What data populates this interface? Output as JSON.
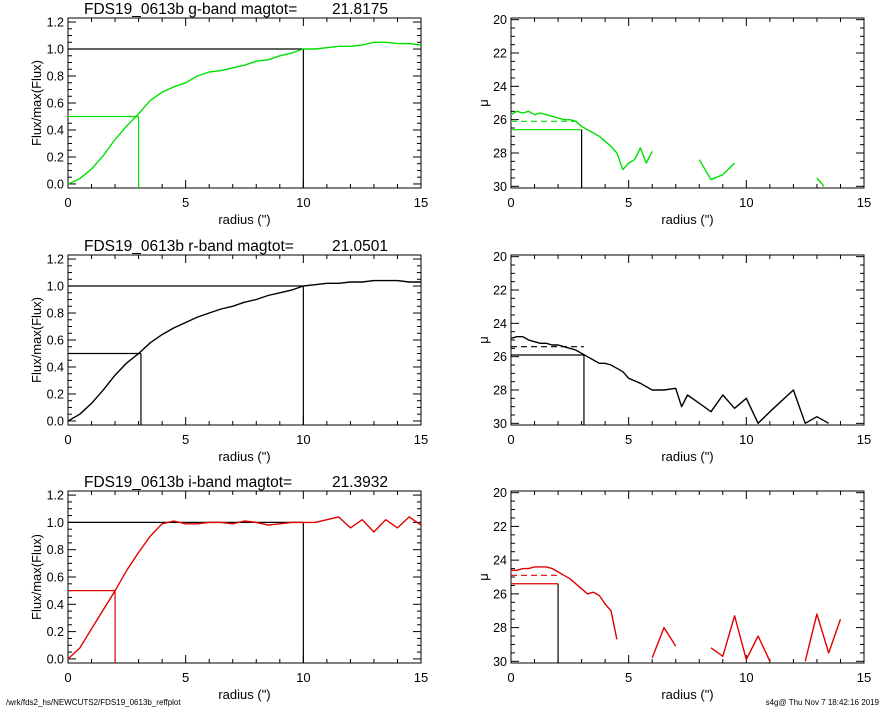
{
  "footer": {
    "path": "/wrk/fds2_hs/NEWCUTS2/FDS19_0613b_reffplot",
    "stamp": "s4g@  Thu Nov  7 18:42:16 2019"
  },
  "chart_data": [
    {
      "type": "line",
      "band": "g",
      "title_left": "FDS19_0613b g-band  magtot=",
      "title_right": "21.8175",
      "xlabel": "radius (\")",
      "ylabel": "Flux/max(Flux)",
      "xlim": [
        0,
        15
      ],
      "ylim": [
        -0.03,
        1.23
      ],
      "xticks": [
        0,
        5,
        10,
        15
      ],
      "yticks": [
        0.0,
        0.2,
        0.4,
        0.6,
        0.8,
        1.0,
        1.2
      ],
      "color": "#00e000",
      "r_half": 3.0,
      "r_tot": 10.0,
      "x": [
        0,
        0.5,
        1,
        1.5,
        2,
        2.5,
        3,
        3.5,
        4,
        4.5,
        5,
        5.5,
        6,
        6.5,
        7,
        7.5,
        8,
        8.5,
        9,
        9.5,
        10,
        10.5,
        11,
        11.5,
        12,
        12.5,
        13,
        13.5,
        14,
        14.5,
        15
      ],
      "y": [
        0.0,
        0.04,
        0.11,
        0.21,
        0.33,
        0.43,
        0.52,
        0.62,
        0.68,
        0.72,
        0.75,
        0.8,
        0.83,
        0.84,
        0.86,
        0.88,
        0.91,
        0.92,
        0.95,
        0.97,
        1.0,
        1.0,
        1.01,
        1.02,
        1.02,
        1.03,
        1.05,
        1.05,
        1.04,
        1.04,
        1.03
      ]
    },
    {
      "type": "line",
      "band": "g",
      "title_left": "",
      "title_right": "",
      "xlabel": "radius (\")",
      "ylabel": "μ",
      "xlim": [
        0,
        15
      ],
      "ylim": [
        30.1,
        19.9
      ],
      "xticks": [
        0,
        5,
        10,
        15
      ],
      "yticks": [
        20,
        22,
        24,
        26,
        28,
        30
      ],
      "color": "#00e000",
      "r_half": 3.0,
      "mu_half": 26.6,
      "mu_mean": 26.1,
      "x": [
        0,
        0.25,
        0.5,
        0.75,
        1,
        1.25,
        1.5,
        1.75,
        2,
        2.25,
        2.5,
        2.75,
        3,
        3.25,
        3.5,
        3.75,
        4,
        4.25,
        4.5,
        4.75,
        5,
        5.25,
        5.5,
        5.75,
        6,
        6.5,
        7,
        7.5,
        8,
        8.5,
        9,
        9.5,
        10,
        11,
        12,
        13,
        13.3
      ],
      "y": [
        25.7,
        25.5,
        25.6,
        25.5,
        25.7,
        25.6,
        25.7,
        25.8,
        25.9,
        26.0,
        26.0,
        26.1,
        26.4,
        26.6,
        26.8,
        27.0,
        27.3,
        27.6,
        28.0,
        29.0,
        28.6,
        28.4,
        27.7,
        28.6,
        27.9,
        null,
        29.3,
        null,
        28.4,
        29.6,
        29.3,
        28.6,
        null,
        null,
        null,
        29.5,
        30.0
      ]
    },
    {
      "type": "line",
      "band": "r",
      "title_left": "FDS19_0613b r-band  magtot=",
      "title_right": "21.0501",
      "xlabel": "radius (\")",
      "ylabel": "Flux/max(Flux)",
      "xlim": [
        0,
        15
      ],
      "ylim": [
        -0.03,
        1.23
      ],
      "xticks": [
        0,
        5,
        10,
        15
      ],
      "yticks": [
        0.0,
        0.2,
        0.4,
        0.6,
        0.8,
        1.0,
        1.2
      ],
      "color": "#000000",
      "r_half": 3.1,
      "r_tot": 10.0,
      "x": [
        0,
        0.5,
        1,
        1.5,
        2,
        2.5,
        3,
        3.5,
        4,
        4.5,
        5,
        5.5,
        6,
        6.5,
        7,
        7.5,
        8,
        8.5,
        9,
        9.5,
        10,
        10.5,
        11,
        11.5,
        12,
        12.5,
        13,
        13.5,
        14,
        14.5,
        15
      ],
      "y": [
        0.0,
        0.05,
        0.13,
        0.23,
        0.34,
        0.43,
        0.5,
        0.58,
        0.64,
        0.69,
        0.73,
        0.77,
        0.8,
        0.83,
        0.85,
        0.88,
        0.9,
        0.93,
        0.95,
        0.97,
        1.0,
        1.01,
        1.02,
        1.02,
        1.03,
        1.03,
        1.04,
        1.04,
        1.04,
        1.03,
        1.03
      ]
    },
    {
      "type": "line",
      "band": "r",
      "title_left": "",
      "title_right": "",
      "xlabel": "radius (\")",
      "ylabel": "μ",
      "xlim": [
        0,
        15
      ],
      "ylim": [
        30.1,
        19.9
      ],
      "xticks": [
        0,
        5,
        10,
        15
      ],
      "yticks": [
        20,
        22,
        24,
        26,
        28,
        30
      ],
      "color": "#000000",
      "r_half": 3.1,
      "mu_half": 25.9,
      "mu_mean": 25.4,
      "x": [
        0,
        0.25,
        0.5,
        0.75,
        1,
        1.25,
        1.5,
        1.75,
        2,
        2.25,
        2.5,
        2.75,
        3,
        3.25,
        3.5,
        3.75,
        4,
        4.25,
        4.5,
        4.75,
        5,
        5.5,
        6,
        6.5,
        7,
        7.25,
        7.5,
        8,
        8.5,
        9,
        9.5,
        10,
        10.5,
        11,
        12,
        12.5,
        13,
        13.5
      ],
      "y": [
        24.9,
        24.8,
        24.8,
        25.0,
        25.1,
        25.2,
        25.2,
        25.3,
        25.3,
        25.4,
        25.5,
        25.6,
        25.8,
        26.0,
        26.2,
        26.4,
        26.4,
        26.5,
        26.7,
        26.9,
        27.3,
        27.6,
        28.0,
        28.0,
        27.9,
        29.0,
        28.3,
        28.8,
        29.3,
        28.3,
        29.1,
        28.5,
        30.0,
        29.3,
        28.0,
        30.0,
        29.6,
        30.0
      ]
    },
    {
      "type": "line",
      "band": "i",
      "title_left": "FDS19_0613b i-band  magtot=",
      "title_right": "21.3932",
      "xlabel": "radius (\")",
      "ylabel": "Flux/max(Flux)",
      "xlim": [
        0,
        15
      ],
      "ylim": [
        -0.03,
        1.23
      ],
      "xticks": [
        0,
        5,
        10,
        15
      ],
      "yticks": [
        0.0,
        0.2,
        0.4,
        0.6,
        0.8,
        1.0,
        1.2
      ],
      "color": "#e00000",
      "r_half": 2.0,
      "r_tot": 10.0,
      "x": [
        0,
        0.5,
        1,
        1.5,
        2,
        2.5,
        3,
        3.5,
        4,
        4.5,
        5,
        5.5,
        6,
        6.5,
        7,
        7.5,
        8,
        8.5,
        9,
        9.5,
        10,
        10.5,
        11,
        11.5,
        12,
        12.5,
        13,
        13.5,
        14,
        14.5,
        15
      ],
      "y": [
        0.0,
        0.08,
        0.22,
        0.36,
        0.5,
        0.65,
        0.78,
        0.9,
        0.99,
        1.01,
        0.99,
        0.99,
        1.0,
        1.0,
        0.99,
        1.01,
        1.0,
        0.98,
        0.99,
        1.0,
        1.0,
        1.0,
        1.02,
        1.04,
        0.96,
        1.02,
        0.93,
        1.02,
        0.96,
        1.04,
        0.98
      ]
    },
    {
      "type": "line",
      "band": "i",
      "title_left": "",
      "title_right": "",
      "xlabel": "radius (\")",
      "ylabel": "μ",
      "xlim": [
        0,
        15
      ],
      "ylim": [
        30.1,
        19.9
      ],
      "xticks": [
        0,
        5,
        10,
        15
      ],
      "yticks": [
        20,
        22,
        24,
        26,
        28,
        30
      ],
      "color": "#e00000",
      "r_half": 2.0,
      "mu_half": 25.4,
      "mu_mean": 24.9,
      "x": [
        0,
        0.25,
        0.5,
        0.75,
        1,
        1.25,
        1.5,
        1.75,
        2,
        2.25,
        2.5,
        2.75,
        3,
        3.25,
        3.5,
        3.75,
        4,
        4.25,
        4.5,
        5,
        5.5,
        6,
        6.5,
        7,
        7.5,
        8,
        8.5,
        9,
        9.5,
        10,
        10.5,
        11,
        12,
        12.5,
        13,
        13.5,
        14
      ],
      "y": [
        24.6,
        24.6,
        24.5,
        24.5,
        24.4,
        24.4,
        24.4,
        24.5,
        24.7,
        24.9,
        25.1,
        25.4,
        25.7,
        26.0,
        25.9,
        26.1,
        26.6,
        27.0,
        28.7,
        null,
        null,
        29.8,
        28.0,
        29.1,
        null,
        null,
        29.2,
        29.7,
        27.3,
        29.9,
        28.5,
        30.0,
        null,
        30.0,
        27.2,
        29.5,
        27.5
      ]
    }
  ]
}
